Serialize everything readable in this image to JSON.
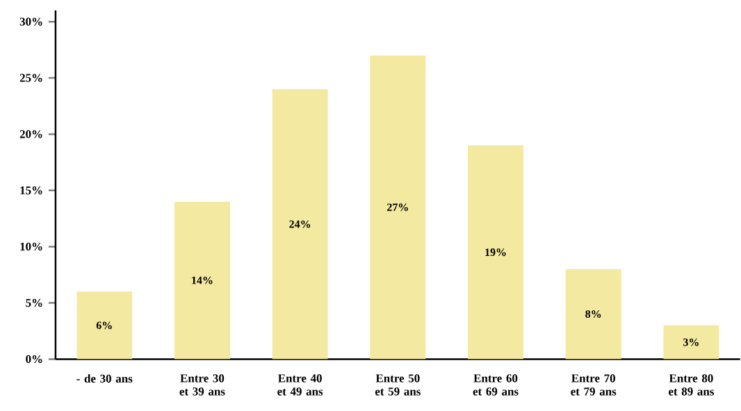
{
  "chart_data": {
    "type": "bar",
    "categories": [
      "- de 30 ans",
      "Entre 30 et 39 ans",
      "Entre 40 et 49 ans",
      "Entre 50 et 59 ans",
      "Entre 60 et 69 ans",
      "Entre 70 et 79 ans",
      "Entre 80 et 89 ans"
    ],
    "values": [
      6,
      14,
      24,
      27,
      19,
      8,
      3
    ],
    "color": "#f3e9a0",
    "ylim": [
      0,
      31
    ],
    "yticks": [
      {
        "value": 0,
        "label": "0%"
      },
      {
        "value": 5,
        "label": "5%"
      },
      {
        "value": 10,
        "label": "10%"
      },
      {
        "value": 15,
        "label": "15%"
      },
      {
        "value": 20,
        "label": "20%"
      },
      {
        "value": 25,
        "label": "25%"
      },
      {
        "value": 30,
        "label": "30%"
      }
    ],
    "value_labels": [
      "6%",
      "14%",
      "24%",
      "27%",
      "19%",
      "8%",
      "3%"
    ]
  }
}
